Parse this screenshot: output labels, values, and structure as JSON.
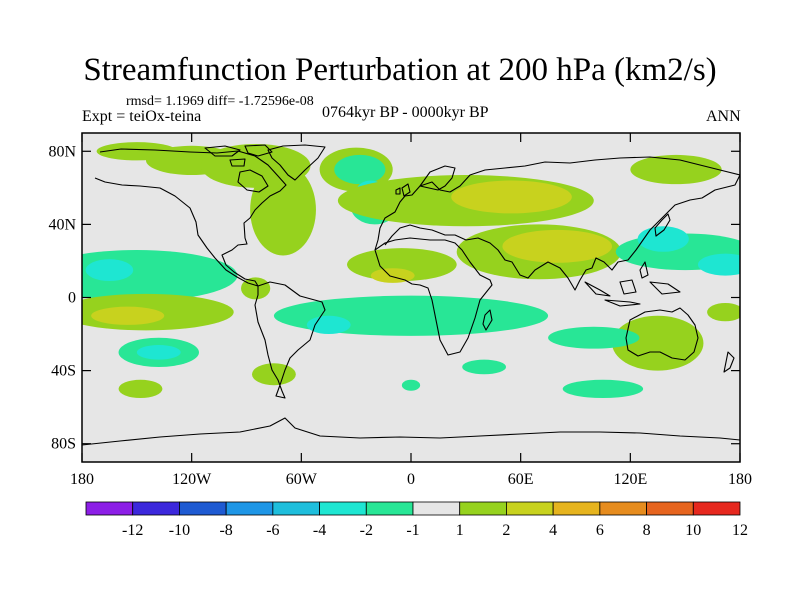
{
  "title": "Streamfunction Perturbation at 200 hPa (km2/s)",
  "stats": "rmsd= 1.1969 diff= -1.72596e-08",
  "experiment": "Expt = teiOx-teina",
  "period": "0764kyr BP - 0000kyr BP",
  "season": "ANN",
  "axes": {
    "lon_ticks": [
      "180",
      "120W",
      "60W",
      "0",
      "60E",
      "120E",
      "180"
    ],
    "lat_ticks": [
      "80N",
      "40N",
      "0",
      "40S",
      "80S"
    ],
    "lon_range": [
      -180,
      180
    ],
    "lat_range": [
      -90,
      90
    ]
  },
  "colorbar": {
    "labels": [
      "-12",
      "-10",
      "-8",
      "-6",
      "-4",
      "-2",
      "-1",
      "1",
      "2",
      "4",
      "6",
      "8",
      "10",
      "12"
    ],
    "colors": [
      "#8c1ee6",
      "#3c28dc",
      "#1e5ad2",
      "#1e96e6",
      "#1ebedc",
      "#1ee6d2",
      "#28e696",
      "#e6e6e6",
      "#96d21e",
      "#c8d21e",
      "#e6b41e",
      "#e68c1e",
      "#e6641e",
      "#e6281e"
    ]
  },
  "chart_data": {
    "type": "heatmap",
    "title": "Streamfunction Perturbation at 200 hPa (km2/s)",
    "units": "km2/s",
    "levels": [
      -12,
      -10,
      -8,
      -6,
      -4,
      -2,
      -1,
      1,
      2,
      4,
      6,
      8,
      10,
      12
    ],
    "features": [
      {
        "lon": -150,
        "lat": 80,
        "rlon": 22,
        "rlat": 5,
        "value": 1.5
      },
      {
        "lon": -120,
        "lat": 75,
        "rlon": 25,
        "rlat": 8,
        "value": 1.5
      },
      {
        "lon": -85,
        "lat": 72,
        "rlon": 30,
        "rlat": 12,
        "value": 1.5
      },
      {
        "lon": -70,
        "lat": 48,
        "rlon": 18,
        "rlat": 25,
        "value": 1.5
      },
      {
        "lon": -30,
        "lat": 70,
        "rlon": 20,
        "rlat": 12,
        "value": 1.5
      },
      {
        "lon": -28,
        "lat": 70,
        "rlon": 14,
        "rlat": 8,
        "value": -1.5
      },
      {
        "lon": -20,
        "lat": 50,
        "rlon": 13,
        "rlat": 10,
        "value": -1.5
      },
      {
        "lon": -22,
        "lat": 58,
        "rlon": 8,
        "rlat": 6,
        "value": -2.5
      },
      {
        "lon": 145,
        "lat": 70,
        "rlon": 25,
        "rlat": 8,
        "value": 1.5
      },
      {
        "lon": 30,
        "lat": 53,
        "rlon": 70,
        "rlat": 14,
        "value": 1.5
      },
      {
        "lon": 55,
        "lat": 55,
        "rlon": 33,
        "rlat": 9,
        "value": 2.5
      },
      {
        "lon": -5,
        "lat": 18,
        "rlon": 30,
        "rlat": 9,
        "value": 1.5
      },
      {
        "lon": -10,
        "lat": 12,
        "rlon": 12,
        "rlat": 4,
        "value": 2.5
      },
      {
        "lon": 70,
        "lat": 25,
        "rlon": 45,
        "rlat": 15,
        "value": 1.5
      },
      {
        "lon": 80,
        "lat": 28,
        "rlon": 30,
        "rlat": 9,
        "value": 2.5
      },
      {
        "lon": 150,
        "lat": 25,
        "rlon": 38,
        "rlat": 10,
        "value": -1.5
      },
      {
        "lon": 138,
        "lat": 32,
        "rlon": 14,
        "rlat": 7,
        "value": -2.5
      },
      {
        "lon": 172,
        "lat": 18,
        "rlon": 15,
        "rlat": 6,
        "value": -2.5
      },
      {
        "lon": -150,
        "lat": 12,
        "rlon": 55,
        "rlat": 14,
        "value": -1.5
      },
      {
        "lon": -165,
        "lat": 15,
        "rlon": 13,
        "rlat": 6,
        "value": -2.5
      },
      {
        "lon": -145,
        "lat": -8,
        "rlon": 48,
        "rlat": 10,
        "value": 1.5
      },
      {
        "lon": -155,
        "lat": -10,
        "rlon": 20,
        "rlat": 5,
        "value": 2.5
      },
      {
        "lon": -85,
        "lat": 5,
        "rlon": 8,
        "rlat": 6,
        "value": 1.5
      },
      {
        "lon": 0,
        "lat": -10,
        "rlon": 75,
        "rlat": 11,
        "value": -1.5
      },
      {
        "lon": -45,
        "lat": -15,
        "rlon": 12,
        "rlat": 5,
        "value": -2.5
      },
      {
        "lon": 135,
        "lat": -25,
        "rlon": 25,
        "rlat": 15,
        "value": 1.5
      },
      {
        "lon": 100,
        "lat": -22,
        "rlon": 25,
        "rlat": 6,
        "value": -1.5
      },
      {
        "lon": 172,
        "lat": -8,
        "rlon": 10,
        "rlat": 5,
        "value": 1.5
      },
      {
        "lon": -138,
        "lat": -30,
        "rlon": 22,
        "rlat": 8,
        "value": -1.5
      },
      {
        "lon": -138,
        "lat": -30,
        "rlon": 12,
        "rlat": 4,
        "value": -2.5
      },
      {
        "lon": -75,
        "lat": -42,
        "rlon": 12,
        "rlat": 6,
        "value": 1.5
      },
      {
        "lon": 40,
        "lat": -38,
        "rlon": 12,
        "rlat": 4,
        "value": -1.5
      },
      {
        "lon": -148,
        "lat": -50,
        "rlon": 12,
        "rlat": 5,
        "value": 1.5
      },
      {
        "lon": 105,
        "lat": -50,
        "rlon": 22,
        "rlat": 5,
        "value": -1.5
      },
      {
        "lon": 0,
        "lat": -48,
        "rlon": 5,
        "rlat": 3,
        "value": -1.5
      }
    ]
  }
}
